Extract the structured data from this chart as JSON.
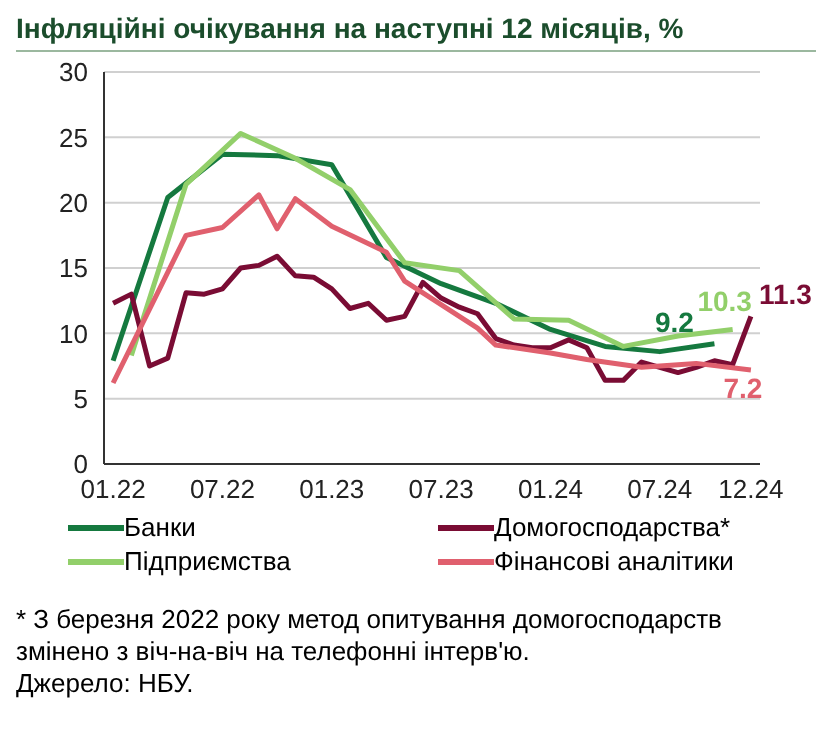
{
  "chart_data": {
    "type": "line",
    "title": "Інфляційні очікування на наступні 12 місяців, %",
    "categories": [
      "01.22",
      null,
      null,
      null,
      null,
      null,
      "07.22",
      null,
      null,
      null,
      null,
      null,
      "01.23",
      null,
      null,
      null,
      null,
      null,
      "07.23",
      null,
      null,
      null,
      null,
      null,
      "01.24",
      null,
      null,
      null,
      null,
      null,
      "07.24",
      null,
      null,
      null,
      null,
      "12.24"
    ],
    "series": [
      {
        "name": "Банки",
        "color": "#15793f",
        "values": [
          7.9,
          null,
          null,
          20.4,
          null,
          null,
          23.7,
          null,
          null,
          23.6,
          null,
          null,
          22.9,
          null,
          null,
          15.8,
          null,
          null,
          13.8,
          null,
          null,
          12.3,
          null,
          null,
          10.3,
          null,
          null,
          9.0,
          null,
          null,
          8.6,
          null,
          null,
          9.2,
          null,
          null
        ],
        "value_labels": [
          null,
          null,
          null,
          null,
          null,
          null,
          null,
          null,
          null,
          null,
          null,
          null,
          null,
          null,
          null,
          null,
          null,
          null,
          null,
          null,
          null,
          null,
          null,
          null,
          null,
          null,
          null,
          null,
          null,
          null,
          null,
          null,
          null,
          "9.2",
          null,
          null
        ]
      },
      {
        "name": "Підприємства",
        "color": "#92cf6a",
        "values": [
          null,
          8.3,
          null,
          null,
          21.4,
          null,
          null,
          25.3,
          null,
          null,
          23.4,
          null,
          null,
          21.0,
          null,
          null,
          15.4,
          null,
          null,
          14.8,
          null,
          null,
          11.1,
          null,
          null,
          11.0,
          null,
          null,
          9.0,
          null,
          null,
          9.8,
          null,
          null,
          10.3,
          null
        ],
        "value_labels": [
          null,
          null,
          null,
          null,
          null,
          null,
          null,
          null,
          null,
          null,
          null,
          null,
          null,
          null,
          null,
          null,
          null,
          null,
          null,
          null,
          null,
          null,
          null,
          null,
          null,
          null,
          null,
          null,
          null,
          null,
          null,
          null,
          null,
          null,
          "10.3",
          null
        ]
      },
      {
        "name": "Домогосподарства*",
        "color": "#7a0c34",
        "values": [
          12.3,
          13.0,
          7.5,
          8.1,
          13.1,
          13.0,
          13.4,
          15.0,
          15.2,
          15.9,
          14.4,
          14.3,
          13.4,
          11.9,
          12.3,
          11.0,
          11.3,
          13.9,
          12.7,
          12.0,
          11.5,
          9.6,
          9.1,
          8.9,
          8.9,
          9.5,
          8.9,
          6.4,
          6.4,
          7.8,
          7.4,
          7.0,
          7.4,
          7.9,
          7.6,
          11.3
        ],
        "value_labels": [
          null,
          null,
          null,
          null,
          null,
          null,
          null,
          null,
          null,
          null,
          null,
          null,
          null,
          null,
          null,
          null,
          null,
          null,
          null,
          null,
          null,
          null,
          null,
          null,
          null,
          null,
          null,
          null,
          null,
          null,
          null,
          null,
          null,
          null,
          null,
          "11.3"
        ]
      },
      {
        "name": "Фінансові аналітики",
        "color": "#e0606e",
        "values": [
          6.2,
          null,
          null,
          null,
          17.5,
          null,
          18.1,
          null,
          20.6,
          18.0,
          20.3,
          null,
          18.2,
          null,
          null,
          16.2,
          14.0,
          null,
          12.2,
          null,
          10.4,
          9.1,
          null,
          null,
          8.5,
          null,
          8.0,
          null,
          null,
          7.4,
          null,
          null,
          7.7,
          null,
          null,
          7.2
        ],
        "value_labels": [
          null,
          null,
          null,
          null,
          null,
          null,
          null,
          null,
          null,
          null,
          null,
          null,
          null,
          null,
          null,
          null,
          null,
          null,
          null,
          null,
          null,
          null,
          null,
          null,
          null,
          null,
          null,
          null,
          null,
          null,
          null,
          null,
          null,
          null,
          null,
          "7.2"
        ]
      }
    ],
    "ylim": [
      0,
      30
    ],
    "yticks": [
      0,
      5,
      10,
      15,
      20,
      25,
      30
    ],
    "grid": "y",
    "legend": "bottom",
    "marker": "none",
    "annotations": [
      "* З березня 2022 року метод опитування домогосподарств змінено з віч-на-віч на телефонні інтерв'ю.",
      "Джерело: НБУ."
    ]
  }
}
